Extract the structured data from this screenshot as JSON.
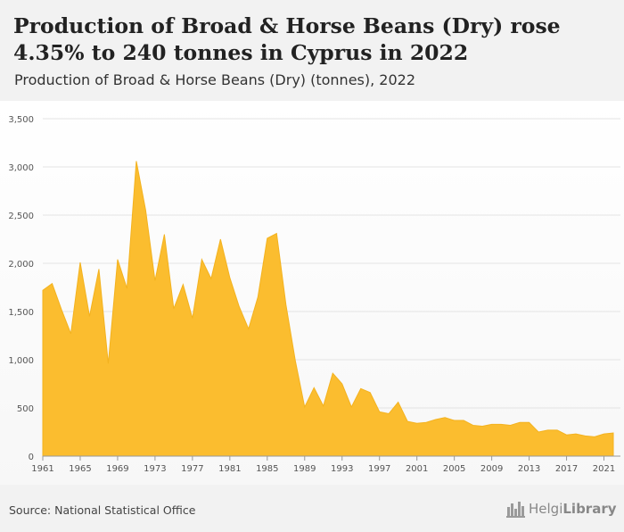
{
  "header": {
    "title": "Production of Broad & Horse Beans (Dry) rose 4.35% to 240 tonnes in Cyprus in 2022",
    "subtitle": "Production of Broad & Horse Beans (Dry) (tonnes), 2022"
  },
  "footer": {
    "source": "Source: National Statistical Office",
    "logo_light": "Helgi",
    "logo_bold": "Library",
    "logo_icon": "skyline-icon"
  },
  "colors": {
    "area": "#fbbd2f",
    "area_stroke": "#f3b21f",
    "grid": "#e4e4e4",
    "header_bg": "#f2f2f2"
  },
  "chart_data": {
    "type": "area",
    "title": "",
    "xlabel": "",
    "ylabel": "",
    "ylim": [
      0,
      3500
    ],
    "xlim": [
      1961,
      2022
    ],
    "y_ticks": [
      "0",
      "500",
      "1,000",
      "1,500",
      "2,000",
      "2,500",
      "3,000",
      "3,500"
    ],
    "x_ticks": [
      "1961",
      "1965",
      "1969",
      "1973",
      "1977",
      "1981",
      "1985",
      "1989",
      "1993",
      "1997",
      "2001",
      "2005",
      "2009",
      "2013",
      "2017",
      "2021"
    ],
    "grid": true,
    "legend": "none",
    "x": [
      1961,
      1962,
      1963,
      1964,
      1965,
      1966,
      1967,
      1968,
      1969,
      1970,
      1971,
      1972,
      1973,
      1974,
      1975,
      1976,
      1977,
      1978,
      1979,
      1980,
      1981,
      1982,
      1983,
      1984,
      1985,
      1986,
      1987,
      1988,
      1989,
      1990,
      1991,
      1992,
      1993,
      1994,
      1995,
      1996,
      1997,
      1998,
      1999,
      2000,
      2001,
      2002,
      2003,
      2004,
      2005,
      2006,
      2007,
      2008,
      2009,
      2010,
      2011,
      2012,
      2013,
      2014,
      2015,
      2016,
      2017,
      2018,
      2019,
      2020,
      2021,
      2022
    ],
    "series": [
      {
        "values": [
          1720,
          1790,
          1520,
          1270,
          2010,
          1450,
          1940,
          960,
          2040,
          1740,
          3060,
          2550,
          1820,
          2300,
          1530,
          1780,
          1430,
          2040,
          1840,
          2250,
          1850,
          1550,
          1320,
          1650,
          2260,
          2310,
          1570,
          990,
          510,
          710,
          520,
          860,
          750,
          510,
          700,
          660,
          460,
          440,
          560,
          360,
          340,
          350,
          380,
          400,
          370,
          370,
          320,
          310,
          330,
          330,
          320,
          350,
          350,
          250,
          270,
          270,
          220,
          230,
          210,
          200,
          230,
          240
        ]
      }
    ]
  }
}
